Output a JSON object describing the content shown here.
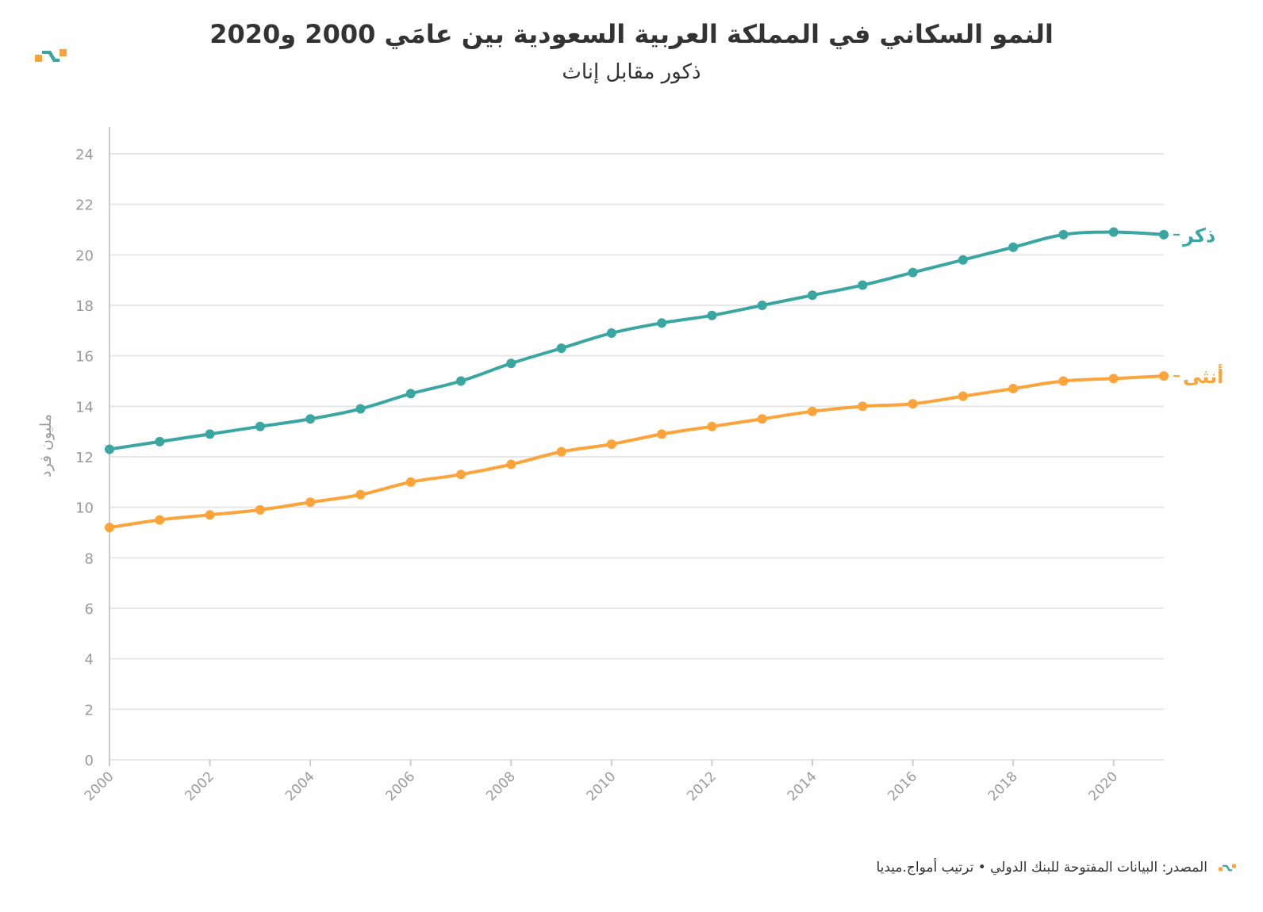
{
  "colors": {
    "male": "#3aa6a2",
    "female": "#fca33a",
    "grid": "#e6e6e6",
    "axis": "#cccccc",
    "text": "#333333",
    "tick": "#9a9a9a"
  },
  "chart_data": {
    "type": "line",
    "title": "النمو السكاني في المملكة العربية السعودية بين عامَي 2000 و2020",
    "subtitle": "ذكور مقابل إناث",
    "ylabel": "مليون فرد",
    "xlabel": "",
    "ylim": [
      0,
      24
    ],
    "yticks": [
      0,
      2,
      4,
      6,
      8,
      10,
      12,
      14,
      16,
      18,
      20,
      22,
      24
    ],
    "xlim": [
      2000,
      2021
    ],
    "xticks": [
      2000,
      2002,
      2004,
      2006,
      2008,
      2010,
      2012,
      2014,
      2016,
      2018,
      2020
    ],
    "x": [
      2000,
      2001,
      2002,
      2003,
      2004,
      2005,
      2006,
      2007,
      2008,
      2009,
      2010,
      2011,
      2012,
      2013,
      2014,
      2015,
      2016,
      2017,
      2018,
      2019,
      2020,
      2021
    ],
    "series": [
      {
        "name": "ذكر",
        "key": "male",
        "values": [
          12.3,
          12.6,
          12.9,
          13.2,
          13.5,
          13.9,
          14.5,
          15.0,
          15.7,
          16.3,
          16.9,
          17.3,
          17.6,
          18.0,
          18.4,
          18.8,
          19.3,
          19.8,
          20.3,
          20.8,
          20.9,
          20.8
        ]
      },
      {
        "name": "أنثى",
        "key": "female",
        "values": [
          9.2,
          9.5,
          9.7,
          9.9,
          10.2,
          10.5,
          11.0,
          11.3,
          11.7,
          12.2,
          12.5,
          12.9,
          13.2,
          13.5,
          13.8,
          14.0,
          14.1,
          14.4,
          14.7,
          15.0,
          15.1,
          15.2
        ]
      }
    ]
  },
  "footer": {
    "source": "المصدر: البيانات المفتوحة للبنك الدولي • ترتيب أمواج.ميديا"
  }
}
